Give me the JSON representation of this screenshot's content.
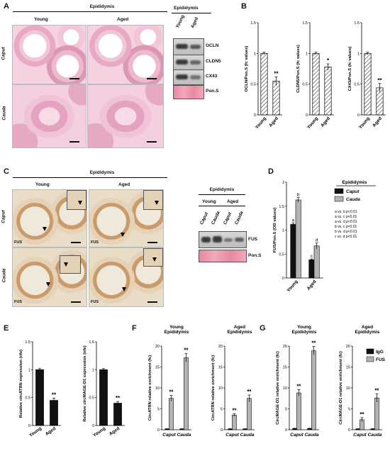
{
  "panels": {
    "A": "A",
    "B": "B",
    "C": "C",
    "D": "D",
    "E": "E",
    "F": "F",
    "G": "G"
  },
  "panelA": {
    "header": "Epididymis",
    "col_young": "Young",
    "col_aged": "Aged",
    "row_caput": "Caput",
    "row_cauda": "Cauda",
    "blot_header": "Epididymis",
    "blot_young": "Young",
    "blot_aged": "Aged",
    "blot_labels": [
      "OCLN",
      "CLDN5",
      "CX43",
      "Pon.S"
    ]
  },
  "panelC": {
    "header": "Epididymis",
    "col_young": "Young",
    "col_aged": "Aged",
    "row_caput": "Caput",
    "row_cauda": "Cauda",
    "fus_label": "FUS",
    "blot_header": "Epididymis",
    "blot_young": "Young",
    "blot_aged": "Aged",
    "blot_lanes": [
      "Caput",
      "Cauda",
      "Caput",
      "Cauda"
    ],
    "blot_labels": [
      "FUS",
      "Pon.S"
    ]
  },
  "chart_data": [
    {
      "id": "B1",
      "type": "bar",
      "categories": [
        "Young",
        "Aged"
      ],
      "values": [
        1.0,
        0.55
      ],
      "errors": [
        0.02,
        0.07
      ],
      "sig": [
        "",
        "**"
      ],
      "ylabel": "OCLN/Pon.S (fc values)",
      "ylim": [
        0,
        1.5
      ],
      "yticks": [
        "0",
        "0.5",
        "1",
        "1.5"
      ],
      "pattern": "hatch"
    },
    {
      "id": "B2",
      "type": "bar",
      "categories": [
        "Young",
        "Aged"
      ],
      "values": [
        1.0,
        0.78
      ],
      "errors": [
        0.02,
        0.05
      ],
      "sig": [
        "",
        "*"
      ],
      "ylabel": "CLDN5/Pon.S (fc values)",
      "ylim": [
        0,
        1.5
      ],
      "yticks": [
        "0",
        "0.5",
        "1",
        "1.5"
      ],
      "pattern": "hatch"
    },
    {
      "id": "B3",
      "type": "bar",
      "categories": [
        "Young",
        "Aged"
      ],
      "values": [
        1.0,
        0.44
      ],
      "errors": [
        0.02,
        0.07
      ],
      "sig": [
        "",
        "**"
      ],
      "ylabel": "CX43/Pon.S (fc values)",
      "ylim": [
        0,
        1.5
      ],
      "yticks": [
        "0",
        "0.5",
        "1",
        "1.5"
      ],
      "pattern": "hatch"
    },
    {
      "id": "D",
      "type": "bar",
      "categories": [
        "Young",
        "Aged"
      ],
      "series": [
        {
          "name": "Caput",
          "values": [
            1.12,
            0.38
          ],
          "errors": [
            0.03,
            0.02
          ],
          "letters": [
            "a",
            "c"
          ],
          "color": "#111111"
        },
        {
          "name": "Cauda",
          "values": [
            1.63,
            0.67
          ],
          "errors": [
            0.05,
            0.06
          ],
          "letters": [
            "b",
            "d"
          ],
          "color": "#b3b3b3"
        }
      ],
      "ylabel": "FUS/Pon.S (OD values)",
      "ylim": [
        0,
        2
      ],
      "yticks": [
        "0",
        "0.5",
        "1",
        "1.5",
        "2"
      ],
      "legend_title": "Epididymis",
      "stats": [
        "a vs. b p<0.01",
        "a vs. c p<0.01",
        "a vs. d p<0.01",
        "b vs. c p<0.01",
        "b vs. d p<0.01",
        "c vs. d p<0.01"
      ]
    },
    {
      "id": "E1",
      "type": "bar",
      "categories": [
        "Young",
        "Aged"
      ],
      "values": [
        1.0,
        0.45
      ],
      "errors": [
        0.02,
        0.04
      ],
      "sig": [
        "",
        "**"
      ],
      "ylabel": "Relative circATRN expression (nfe)",
      "ylim": [
        0,
        1.5
      ],
      "yticks": [
        "0",
        "0.5",
        "1",
        "1.5"
      ],
      "color": "#111111"
    },
    {
      "id": "E2",
      "type": "bar",
      "categories": [
        "Young",
        "Aged"
      ],
      "values": [
        1.0,
        0.4
      ],
      "errors": [
        0.02,
        0.03
      ],
      "sig": [
        "",
        "**"
      ],
      "ylabel": "Relative circMAGE-D1 expression (nfe)",
      "ylim": [
        0,
        1.5
      ],
      "yticks": [
        "0",
        "0.5",
        "1",
        "1.5"
      ],
      "color": "#111111"
    },
    {
      "id": "F1",
      "type": "bar",
      "title": "Young Epididymis",
      "categories": [
        "Caput",
        "Cauda"
      ],
      "series": [
        {
          "name": "IgG",
          "values": [
            0.2,
            0.2
          ],
          "errors": [
            0.05,
            0.05
          ],
          "color": "#111111"
        },
        {
          "name": "FUS",
          "values": [
            7.5,
            17.2
          ],
          "errors": [
            0.7,
            1.0
          ],
          "color": "#b3b3b3"
        }
      ],
      "sig": [
        "**",
        "**"
      ],
      "ylabel": "CircATRN relative enrichment (fc)",
      "ylim": [
        0,
        20
      ],
      "yticks": [
        "0",
        "5",
        "10",
        "15",
        "20"
      ]
    },
    {
      "id": "F2",
      "type": "bar",
      "title": "Aged Epididymis",
      "categories": [
        "Caput",
        "Cauda"
      ],
      "series": [
        {
          "name": "IgG",
          "values": [
            0.2,
            0.2
          ],
          "errors": [
            0.05,
            0.05
          ],
          "color": "#111111"
        },
        {
          "name": "FUS",
          "values": [
            3.5,
            7.5
          ],
          "errors": [
            0.3,
            0.8
          ],
          "color": "#b3b3b3"
        }
      ],
      "sig": [
        "**",
        "**"
      ],
      "ylabel": "CircATRN relative enrichment (fc)",
      "ylim": [
        0,
        20
      ],
      "yticks": [
        "0",
        "5",
        "10",
        "15",
        "20"
      ]
    },
    {
      "id": "G1",
      "type": "bar",
      "title": "Young Epididymis",
      "categories": [
        "Caput",
        "Cauda"
      ],
      "series": [
        {
          "name": "IgG",
          "values": [
            0.3,
            0.3
          ],
          "errors": [
            0.05,
            0.05
          ],
          "color": "#111111"
        },
        {
          "name": "FUS",
          "values": [
            8.8,
            18.9
          ],
          "errors": [
            0.8,
            1.0
          ],
          "color": "#b3b3b3"
        }
      ],
      "sig": [
        "**",
        "**"
      ],
      "ylabel": "CircMAGE-D1 relative enrichment (fc)",
      "ylim": [
        0,
        20
      ],
      "yticks": [
        "0",
        "5",
        "10",
        "15",
        "20"
      ]
    },
    {
      "id": "G2",
      "type": "bar",
      "title": "Aged Epididymis",
      "categories": [
        "Caput",
        "Cauda"
      ],
      "series": [
        {
          "name": "IgG",
          "values": [
            0.2,
            0.2
          ],
          "errors": [
            0.05,
            0.05
          ],
          "color": "#111111"
        },
        {
          "name": "FUS",
          "values": [
            2.4,
            7.6
          ],
          "errors": [
            0.5,
            1.0
          ],
          "color": "#b3b3b3"
        }
      ],
      "sig": [
        "**",
        "**"
      ],
      "ylabel": "CircMAGE-D1 relative enrichment (fc)",
      "ylim": [
        0,
        20
      ],
      "yticks": [
        "0",
        "5",
        "10",
        "15",
        "20"
      ],
      "legend": [
        "IgG",
        "FUS"
      ]
    }
  ]
}
